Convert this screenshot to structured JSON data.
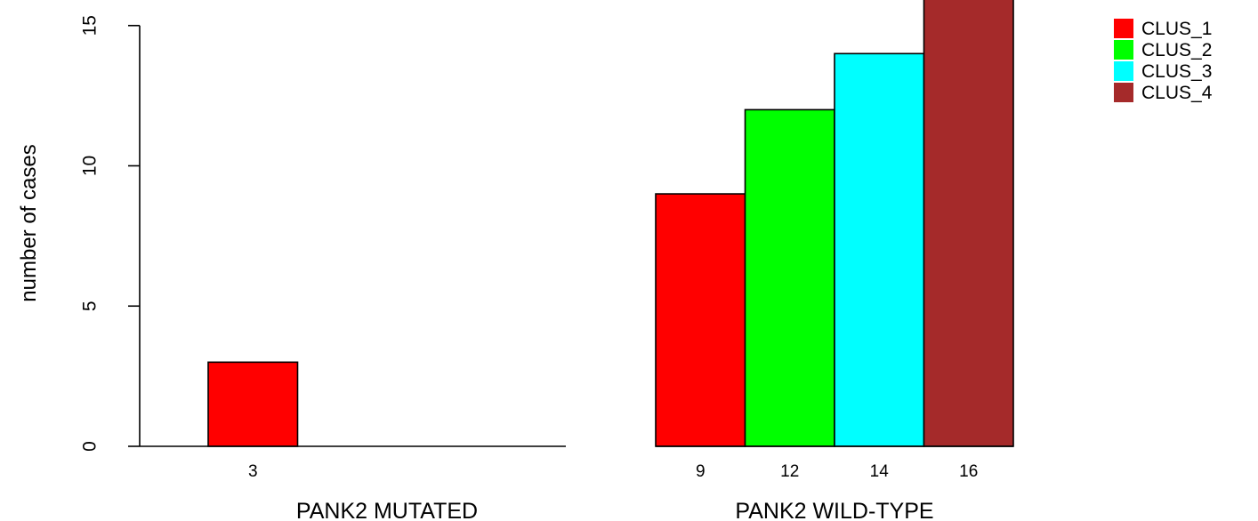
{
  "chart_data": {
    "type": "bar",
    "ylabel": "number of cases",
    "ylim": [
      0,
      16
    ],
    "yticks": [
      0,
      5,
      10,
      15
    ],
    "grid": false,
    "legend_position": "top-right",
    "groups": [
      "PANK2 MUTATED",
      "PANK2 WILD-TYPE"
    ],
    "series": [
      {
        "name": "CLUS_1",
        "color": "#FF0000",
        "values": [
          3,
          9
        ]
      },
      {
        "name": "CLUS_2",
        "color": "#00FF00",
        "values": [
          0,
          12
        ]
      },
      {
        "name": "CLUS_3",
        "color": "#00FFFF",
        "values": [
          0,
          14
        ]
      },
      {
        "name": "CLUS_4",
        "color": "#A52A2A",
        "values": [
          0,
          16
        ]
      }
    ]
  }
}
